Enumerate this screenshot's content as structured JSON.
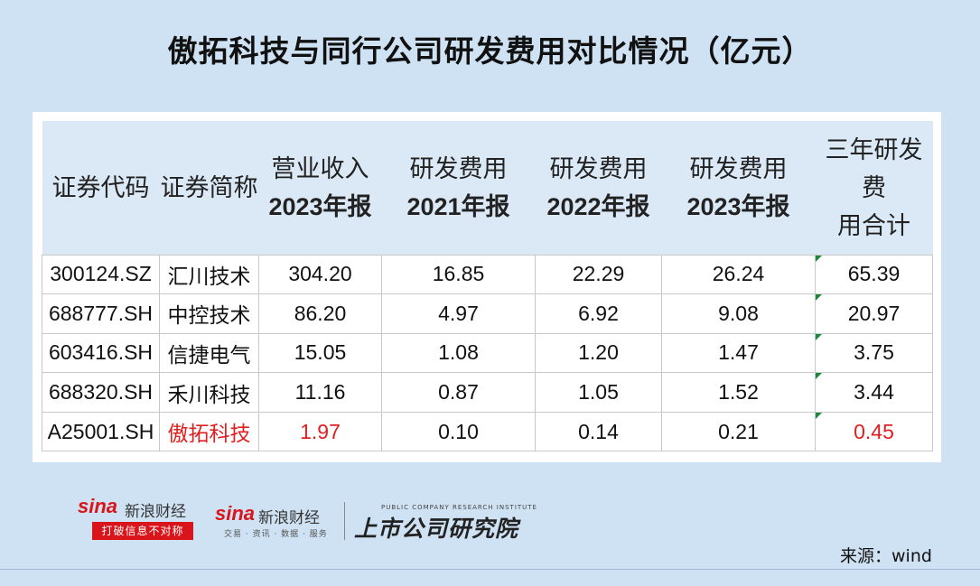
{
  "title": "傲拓科技与同行公司研发费用对比情况（亿元）",
  "table": {
    "headers": [
      {
        "line1": "证券代码",
        "line2": ""
      },
      {
        "line1": "证券简称",
        "line2": ""
      },
      {
        "line1": "营业收入",
        "line2": "2023年报"
      },
      {
        "line1": "研发费用",
        "line2": "2021年报"
      },
      {
        "line1": "研发费用",
        "line2": "2022年报"
      },
      {
        "line1": "研发费用",
        "line2": "2023年报"
      },
      {
        "line1": "三年研发费",
        "line2": "用合计"
      }
    ],
    "rows": [
      {
        "code": "300124.SZ",
        "name": "汇川技术",
        "revenue_2023": "304.20",
        "rd_2021": "16.85",
        "rd_2022": "22.29",
        "rd_2023": "26.24",
        "rd_total": "65.39",
        "highlight": false
      },
      {
        "code": "688777.SH",
        "name": "中控技术",
        "revenue_2023": "86.20",
        "rd_2021": "4.97",
        "rd_2022": "6.92",
        "rd_2023": "9.08",
        "rd_total": "20.97",
        "highlight": false
      },
      {
        "code": "603416.SH",
        "name": "信捷电气",
        "revenue_2023": "15.05",
        "rd_2021": "1.08",
        "rd_2022": "1.20",
        "rd_2023": "1.47",
        "rd_total": "3.75",
        "highlight": false
      },
      {
        "code": "688320.SH",
        "name": "禾川科技",
        "revenue_2023": "11.16",
        "rd_2021": "0.87",
        "rd_2022": "1.05",
        "rd_2023": "1.52",
        "rd_total": "3.44",
        "highlight": false
      },
      {
        "code": "A25001.SH",
        "name": "傲拓科技",
        "revenue_2023": "1.97",
        "rd_2021": "0.10",
        "rd_2022": "0.14",
        "rd_2023": "0.21",
        "rd_total": "0.45",
        "highlight": true
      }
    ]
  },
  "logos": {
    "sina1_brand": "sina",
    "sina1_name": "新浪财经",
    "sina1_slogan": "打破信息不对称",
    "sina2_brand": "sina",
    "sina2_name": "新浪财经",
    "sina2_sub": "交易 · 资讯 · 数据 · 服务",
    "research_small": "PUBLIC COMPANY RESEARCH INSTITUTE",
    "research_name": "上市公司研究院"
  },
  "source": "来源：wind",
  "colors": {
    "background": "#cfe2f3",
    "header_bg": "#dbe9f6",
    "highlight_text": "#e02020",
    "brand_red": "#d9141b",
    "marker_green": "#1a8a3a"
  }
}
